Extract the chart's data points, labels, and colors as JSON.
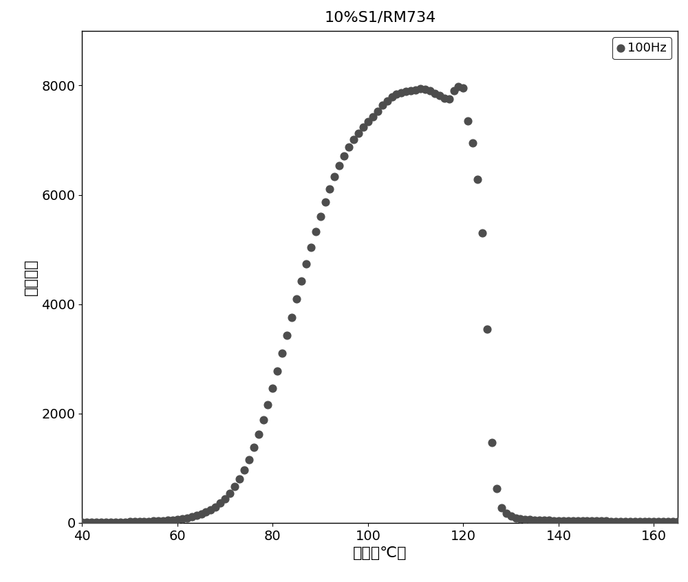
{
  "title": "10%S1/RM734",
  "xlabel": "温度（℃）",
  "ylabel": "介电常数",
  "legend_label": "100Hz",
  "dot_color": "#4d4d4d",
  "dot_size": 60,
  "xlim": [
    40,
    165
  ],
  "ylim": [
    0,
    9000
  ],
  "xticks": [
    40,
    60,
    80,
    100,
    120,
    140,
    160
  ],
  "yticks": [
    0,
    2000,
    4000,
    6000,
    8000
  ],
  "x_data": [
    40.0,
    41.0,
    42.0,
    43.0,
    44.0,
    45.0,
    46.0,
    47.0,
    48.0,
    49.0,
    50.0,
    51.0,
    52.0,
    53.0,
    54.0,
    55.0,
    56.0,
    57.0,
    58.0,
    59.0,
    60.0,
    61.0,
    62.0,
    63.0,
    64.0,
    65.0,
    66.0,
    67.0,
    68.0,
    69.0,
    70.0,
    71.0,
    72.0,
    73.0,
    74.0,
    75.0,
    76.0,
    77.0,
    78.0,
    79.0,
    80.0,
    81.0,
    82.0,
    83.0,
    84.0,
    85.0,
    86.0,
    87.0,
    88.0,
    89.0,
    90.0,
    91.0,
    92.0,
    93.0,
    94.0,
    95.0,
    96.0,
    97.0,
    98.0,
    99.0,
    100.0,
    101.0,
    102.0,
    103.0,
    104.0,
    105.0,
    106.0,
    107.0,
    108.0,
    109.0,
    110.0,
    111.0,
    112.0,
    113.0,
    114.0,
    115.0,
    116.0,
    117.0,
    118.0,
    119.0,
    120.0,
    121.0,
    122.0,
    123.0,
    124.0,
    125.0,
    126.0,
    127.0,
    128.0,
    129.0,
    130.0,
    131.0,
    132.0,
    133.0,
    134.0,
    135.0,
    136.0,
    137.0,
    138.0,
    139.0,
    140.0,
    141.0,
    142.0,
    143.0,
    144.0,
    145.0,
    146.0,
    147.0,
    148.0,
    149.0,
    150.0,
    151.0,
    152.0,
    153.0,
    154.0,
    155.0,
    156.0,
    157.0,
    158.0,
    159.0,
    160.0,
    161.0,
    162.0,
    163.0,
    164.0,
    165.0
  ],
  "y_data": [
    10,
    10,
    10,
    12,
    12,
    12,
    13,
    14,
    15,
    16,
    17,
    19,
    21,
    23,
    26,
    29,
    33,
    38,
    44,
    52,
    62,
    74,
    89,
    107,
    130,
    158,
    193,
    237,
    292,
    358,
    440,
    540,
    660,
    800,
    970,
    1160,
    1380,
    1620,
    1880,
    2160,
    2460,
    2780,
    3100,
    3430,
    3760,
    4090,
    4420,
    4740,
    5040,
    5330,
    5610,
    5870,
    6110,
    6330,
    6530,
    6710,
    6870,
    7010,
    7130,
    7240,
    7340,
    7430,
    7530,
    7640,
    7720,
    7790,
    7840,
    7870,
    7890,
    7900,
    7920,
    7940,
    7930,
    7900,
    7860,
    7820,
    7770,
    7760,
    7910,
    7980,
    7950,
    7350,
    6950,
    6280,
    5300,
    3540,
    1470,
    620,
    280,
    170,
    120,
    90,
    75,
    65,
    58,
    52,
    48,
    45,
    43,
    41,
    40,
    38,
    37,
    36,
    35,
    34,
    33,
    32,
    31,
    30,
    29,
    28,
    27,
    27,
    26,
    26,
    25,
    25,
    24,
    24,
    23,
    22,
    22,
    21,
    20,
    18
  ]
}
